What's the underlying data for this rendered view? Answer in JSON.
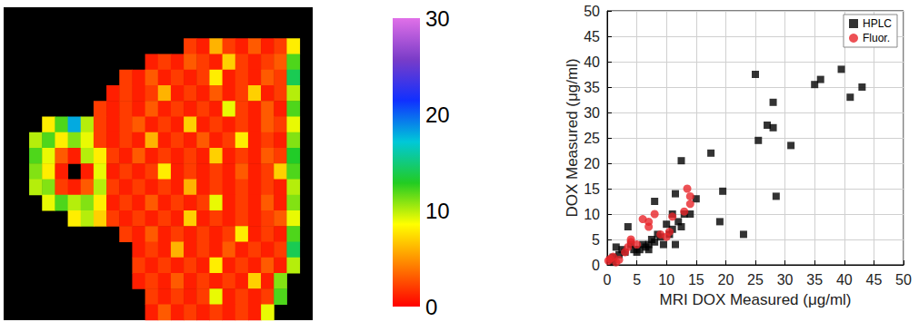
{
  "chart_data": [
    {
      "type": "heatmap",
      "tick_labels": false,
      "cells": [
        [
          null,
          null,
          null,
          null,
          null,
          null,
          null,
          null,
          null,
          null,
          null,
          null,
          null,
          null,
          null,
          null,
          null,
          null,
          null,
          null,
          null,
          null,
          null,
          null
        ],
        [
          null,
          null,
          null,
          null,
          null,
          null,
          null,
          null,
          null,
          null,
          null,
          null,
          null,
          null,
          null,
          null,
          null,
          null,
          null,
          null,
          null,
          null,
          null,
          null
        ],
        [
          null,
          null,
          null,
          null,
          null,
          null,
          null,
          null,
          null,
          null,
          null,
          null,
          null,
          null,
          2,
          1,
          6,
          2,
          1,
          3,
          1,
          2,
          8,
          null
        ],
        [
          null,
          null,
          null,
          null,
          null,
          null,
          null,
          null,
          null,
          null,
          null,
          1,
          2,
          1,
          3,
          2,
          1,
          7,
          2,
          1,
          2,
          3,
          12,
          null
        ],
        [
          null,
          null,
          null,
          null,
          null,
          null,
          null,
          null,
          null,
          2,
          1,
          3,
          1,
          2,
          1,
          2,
          8,
          1,
          2,
          1,
          3,
          2,
          14,
          null
        ],
        [
          null,
          null,
          null,
          null,
          null,
          null,
          null,
          null,
          1,
          2,
          1,
          2,
          6,
          1,
          2,
          1,
          3,
          1,
          2,
          7,
          1,
          2,
          10,
          null
        ],
        [
          null,
          null,
          null,
          null,
          null,
          null,
          null,
          2,
          1,
          2,
          1,
          3,
          1,
          2,
          1,
          2,
          1,
          9,
          2,
          1,
          3,
          1,
          12,
          null
        ],
        [
          null,
          null,
          null,
          8,
          12,
          18,
          10,
          2,
          1,
          2,
          3,
          1,
          2,
          1,
          7,
          1,
          2,
          1,
          2,
          1,
          3,
          2,
          9,
          null
        ],
        [
          null,
          null,
          10,
          12,
          8,
          11,
          9,
          2,
          1,
          2,
          1,
          6,
          1,
          2,
          1,
          3,
          1,
          2,
          8,
          1,
          2,
          1,
          11,
          null
        ],
        [
          null,
          null,
          12,
          9,
          3,
          1,
          10,
          8,
          2,
          1,
          3,
          1,
          2,
          1,
          2,
          1,
          7,
          1,
          2,
          1,
          3,
          2,
          13,
          null
        ],
        [
          null,
          null,
          11,
          8,
          1,
          null,
          1,
          9,
          1,
          2,
          1,
          2,
          8,
          1,
          2,
          1,
          2,
          1,
          3,
          1,
          2,
          7,
          12,
          null
        ],
        [
          null,
          null,
          10,
          11,
          2,
          1,
          3,
          10,
          2,
          1,
          2,
          1,
          2,
          1,
          6,
          1,
          2,
          1,
          2,
          1,
          2,
          1,
          10,
          null
        ],
        [
          null,
          null,
          null,
          9,
          12,
          10,
          11,
          8,
          1,
          2,
          1,
          3,
          1,
          2,
          1,
          2,
          9,
          1,
          2,
          1,
          3,
          1,
          11,
          null
        ],
        [
          null,
          null,
          null,
          null,
          null,
          8,
          10,
          7,
          2,
          1,
          2,
          1,
          2,
          1,
          7,
          1,
          2,
          1,
          2,
          1,
          2,
          3,
          9,
          null
        ],
        [
          null,
          null,
          null,
          null,
          null,
          null,
          null,
          null,
          null,
          2,
          1,
          3,
          1,
          2,
          1,
          2,
          1,
          2,
          8,
          1,
          2,
          1,
          12,
          null
        ],
        [
          null,
          null,
          null,
          null,
          null,
          null,
          null,
          null,
          null,
          null,
          1,
          2,
          1,
          6,
          1,
          2,
          1,
          3,
          1,
          2,
          1,
          2,
          14,
          null
        ],
        [
          null,
          null,
          null,
          null,
          null,
          null,
          null,
          null,
          null,
          null,
          2,
          1,
          2,
          1,
          2,
          1,
          8,
          1,
          2,
          1,
          3,
          1,
          10,
          null
        ],
        [
          null,
          null,
          null,
          null,
          null,
          null,
          null,
          null,
          null,
          null,
          1,
          2,
          1,
          3,
          1,
          2,
          1,
          2,
          1,
          7,
          1,
          11,
          null,
          null
        ],
        [
          null,
          null,
          null,
          null,
          null,
          null,
          null,
          null,
          null,
          null,
          null,
          2,
          1,
          2,
          1,
          2,
          9,
          1,
          2,
          1,
          2,
          12,
          null,
          null
        ],
        [
          null,
          null,
          null,
          null,
          null,
          null,
          null,
          null,
          null,
          null,
          null,
          1,
          3,
          1,
          2,
          1,
          2,
          1,
          2,
          1,
          9,
          null,
          null,
          null
        ]
      ],
      "colorbar": {
        "range": [
          0,
          30
        ],
        "ticks": [
          0,
          10,
          20,
          30
        ]
      }
    },
    {
      "type": "scatter",
      "xlabel": "MRI DOX Measured (μg/ml)",
      "ylabel": "DOX Measured (μg/ml)",
      "xlim": [
        0,
        50
      ],
      "ylim": [
        0,
        50
      ],
      "xticks": [
        0,
        5,
        10,
        15,
        20,
        25,
        30,
        35,
        40,
        45,
        50
      ],
      "yticks": [
        0,
        5,
        10,
        15,
        20,
        25,
        30,
        35,
        40,
        45,
        50
      ],
      "grid": true,
      "legend": "upper right",
      "series": [
        {
          "name": "HPLC",
          "color": "#000000",
          "marker": "square",
          "x": [
            0.5,
            1,
            1,
            1.5,
            2,
            2.5,
            3,
            3.5,
            4,
            4.5,
            5,
            5.5,
            6,
            6.5,
            7,
            7,
            7.5,
            8,
            8,
            8.5,
            9,
            9.5,
            10,
            10.5,
            11,
            11,
            11.5,
            11.5,
            12,
            12.5,
            12.5,
            13,
            14,
            15,
            17.5,
            19,
            19.5,
            23,
            25,
            25.5,
            27,
            28,
            28,
            28.5,
            31,
            35,
            36,
            39.5,
            41,
            43
          ],
          "values": [
            1,
            0.5,
            1.5,
            3.5,
            2,
            3,
            2.5,
            7.5,
            4,
            3,
            2.5,
            3,
            4,
            3.5,
            3,
            4,
            5,
            4.5,
            12.5,
            6,
            5.5,
            4,
            8,
            6,
            7,
            10,
            14,
            4,
            8.5,
            20.5,
            7.5,
            10,
            10,
            13,
            22,
            8.5,
            14.5,
            6,
            37.5,
            24.5,
            27.5,
            27,
            32,
            13.5,
            23.5,
            35.5,
            36.5,
            38.5,
            33,
            35
          ]
        },
        {
          "name": "Fluor.",
          "color": "#e8262b",
          "marker": "circle",
          "x": [
            0.2,
            0.5,
            1,
            1.5,
            2,
            3,
            3.5,
            4,
            4,
            5,
            6,
            7,
            7,
            8,
            9,
            10,
            10.5,
            11,
            13,
            13.5,
            14,
            14
          ],
          "values": [
            0.8,
            1.2,
            1.6,
            0.5,
            1,
            2.5,
            3.5,
            4.5,
            5,
            4,
            9,
            7.5,
            8.5,
            10,
            6,
            5.5,
            6.5,
            9.5,
            10.5,
            15,
            13.5,
            12
          ]
        }
      ]
    }
  ]
}
